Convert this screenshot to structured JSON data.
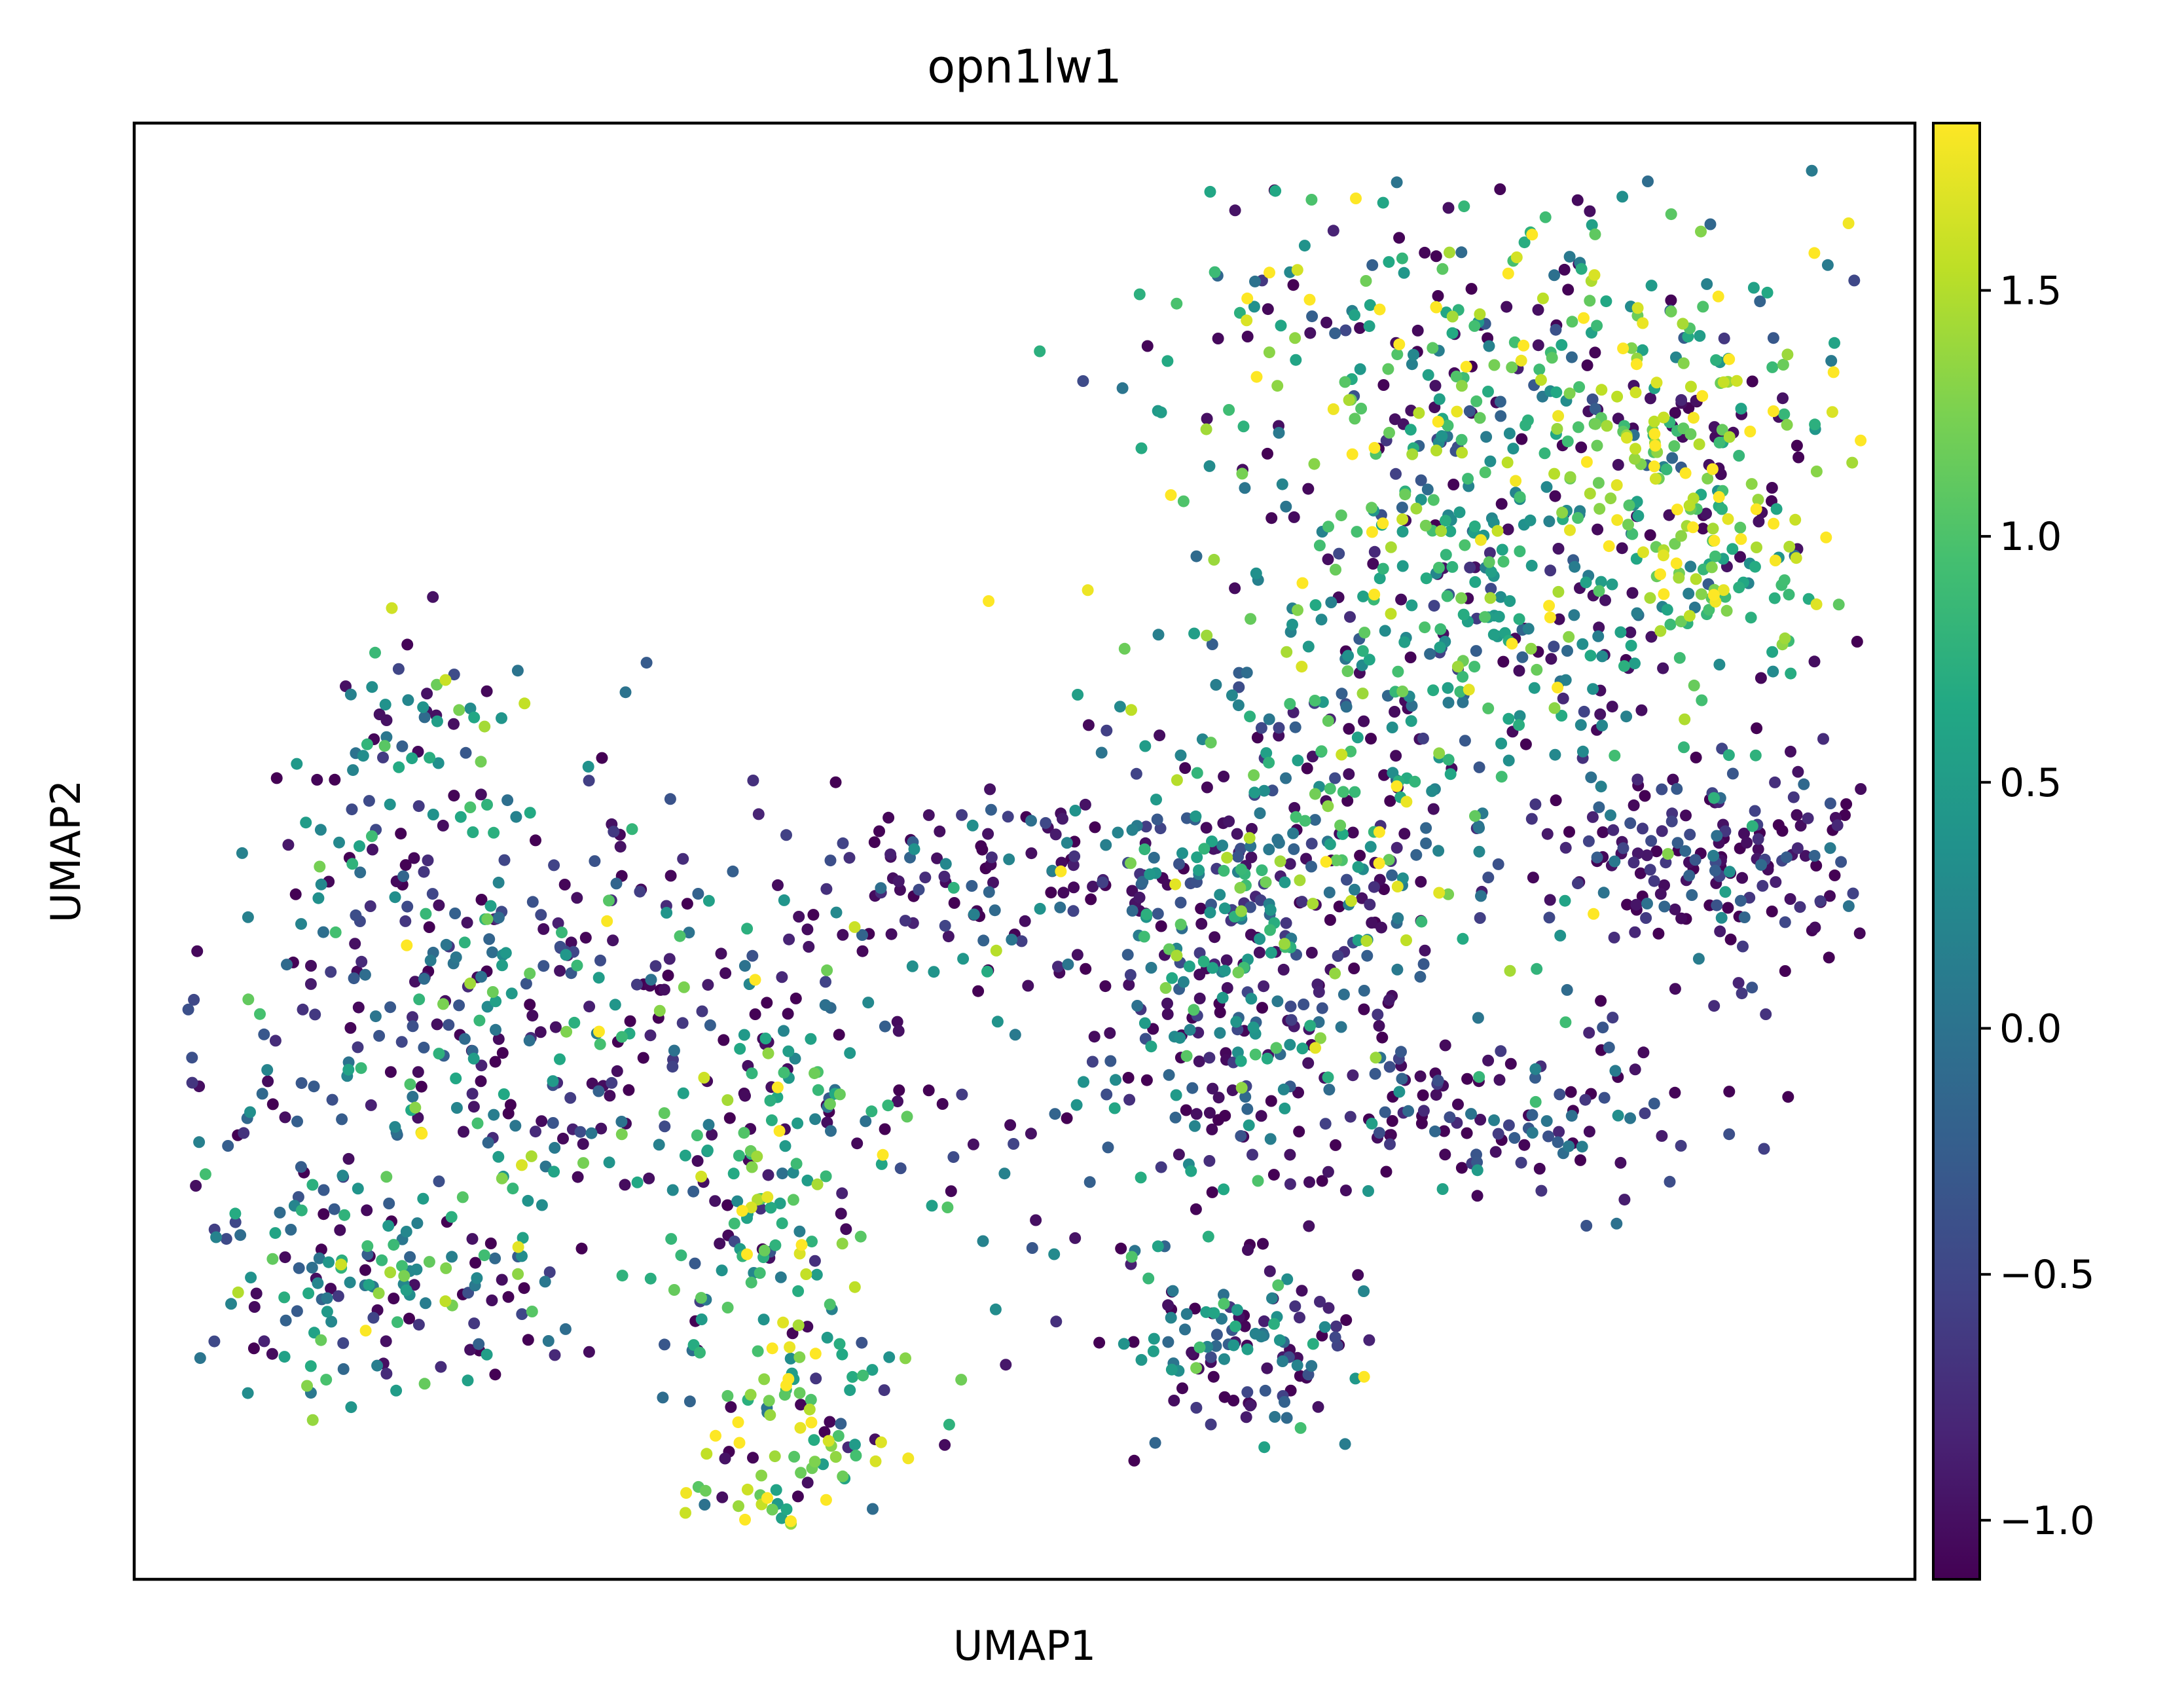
{
  "chart_data": {
    "type": "scatter",
    "title": "opn1lw1",
    "xlabel": "UMAP1",
    "ylabel": "UMAP2",
    "xlim": [
      0,
      100
    ],
    "ylim": [
      0,
      100
    ],
    "x_ticks": "none",
    "y_ticks": "none",
    "grid": false,
    "color_scale": {
      "colormap": "viridis",
      "range": [
        -1.12,
        1.84
      ],
      "ticks": [
        -1.0,
        -0.5,
        0.0,
        0.5,
        1.0,
        1.5
      ],
      "tick_labels": [
        "−1.0",
        "−0.5",
        "0.0",
        "0.5",
        "1.0",
        "1.5"
      ],
      "position": "right"
    },
    "clusters": [
      {
        "cx": 88.5,
        "cy": 73.5,
        "sx": 4.5,
        "sy": 5.0,
        "n": 170,
        "mean": 1.3,
        "spread": 0.45
      },
      {
        "cx": 77.0,
        "cy": 84.5,
        "sx": 9.0,
        "sy": 6.0,
        "n": 290,
        "mean": 0.85,
        "spread": 0.8
      },
      {
        "cx": 74.0,
        "cy": 66.0,
        "sx": 8.5,
        "sy": 9.0,
        "n": 420,
        "mean": 0.55,
        "spread": 0.75
      },
      {
        "cx": 61.5,
        "cy": 40.0,
        "sx": 3.5,
        "sy": 7.5,
        "n": 170,
        "mean": 0.0,
        "spread": 0.85
      },
      {
        "cx": 66.0,
        "cy": 48.0,
        "sx": 6.0,
        "sy": 6.0,
        "n": 220,
        "mean": 0.1,
        "spread": 0.8
      },
      {
        "cx": 91.0,
        "cy": 49.0,
        "sx": 5.5,
        "sy": 4.0,
        "n": 200,
        "mean": -0.75,
        "spread": 0.55
      },
      {
        "cx": 75.0,
        "cy": 32.0,
        "sx": 6.5,
        "sy": 3.5,
        "n": 140,
        "mean": -0.55,
        "spread": 0.6
      },
      {
        "cx": 62.5,
        "cy": 15.0,
        "sx": 3.0,
        "sy": 3.5,
        "n": 110,
        "mean": -0.3,
        "spread": 0.7
      },
      {
        "cx": 48.0,
        "cy": 48.0,
        "sx": 6.5,
        "sy": 3.0,
        "n": 110,
        "mean": -0.6,
        "spread": 0.6
      },
      {
        "cx": 20.0,
        "cy": 40.0,
        "sx": 9.0,
        "sy": 8.5,
        "n": 380,
        "mean": -0.2,
        "spread": 0.8
      },
      {
        "cx": 15.0,
        "cy": 20.0,
        "sx": 6.0,
        "sy": 4.5,
        "n": 160,
        "mean": 0.2,
        "spread": 0.75
      },
      {
        "cx": 36.5,
        "cy": 10.0,
        "sx": 3.0,
        "sy": 6.0,
        "n": 130,
        "mean": 1.05,
        "spread": 0.6
      },
      {
        "cx": 35.5,
        "cy": 30.0,
        "sx": 3.0,
        "sy": 6.0,
        "n": 120,
        "mean": 0.8,
        "spread": 0.65
      },
      {
        "cx": 16.5,
        "cy": 58.0,
        "sx": 2.5,
        "sy": 3.0,
        "n": 50,
        "mean": 0.6,
        "spread": 0.6
      },
      {
        "cx": 49.0,
        "cy": 29.0,
        "sx": 9.0,
        "sy": 8.0,
        "n": 80,
        "mean": 0.0,
        "spread": 0.9
      }
    ]
  }
}
